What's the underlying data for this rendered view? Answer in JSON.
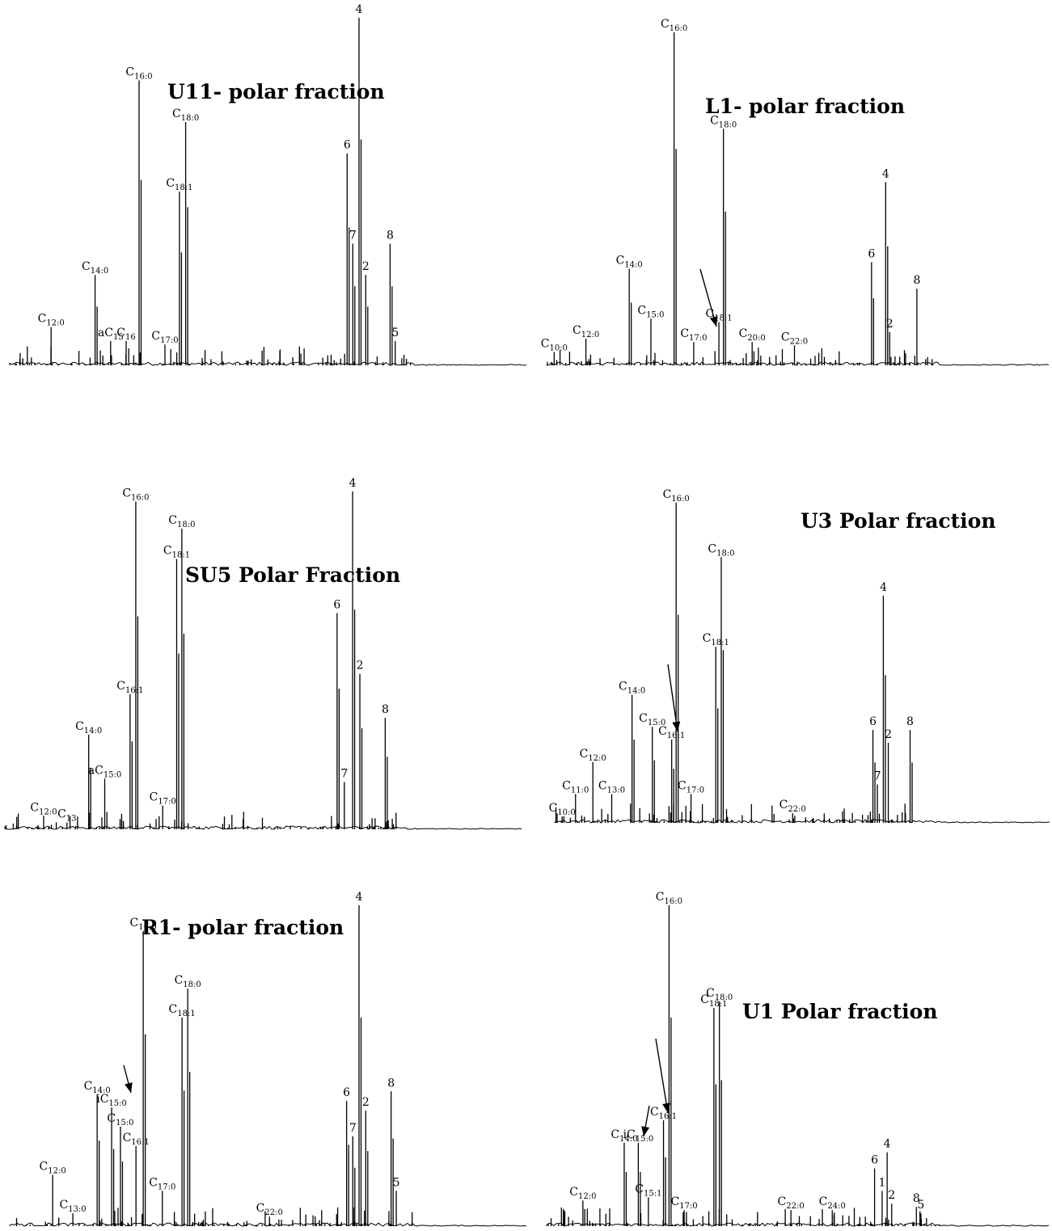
{
  "chart_data": [
    {
      "type": "line",
      "title": "U11- polar fraction",
      "x_range": [
        0,
        100
      ],
      "y_range": [
        0,
        100
      ],
      "peaks": [
        {
          "label": "C12:0",
          "x": 8,
          "y": 11
        },
        {
          "label": "C14:0",
          "x": 16.5,
          "y": 26
        },
        {
          "label": "aC15",
          "x": 19.5,
          "y": 7
        },
        {
          "label": "C16",
          "x": 22.5,
          "y": 7
        },
        {
          "label": "C16:0",
          "x": 25,
          "y": 82
        },
        {
          "label": "C17:0",
          "x": 30,
          "y": 6
        },
        {
          "label": "C18:1",
          "x": 32.8,
          "y": 50
        },
        {
          "label": "C18:0",
          "x": 34,
          "y": 70
        },
        {
          "label": "6",
          "x": 65.2,
          "y": 61
        },
        {
          "label": "7",
          "x": 66.3,
          "y": 35
        },
        {
          "label": "4",
          "x": 67.5,
          "y": 100
        },
        {
          "label": "2",
          "x": 68.8,
          "y": 26
        },
        {
          "label": "8",
          "x": 73.5,
          "y": 35
        },
        {
          "label": "5",
          "x": 74.5,
          "y": 7
        }
      ]
    },
    {
      "type": "line",
      "title": "L1- polar fraction",
      "x_range": [
        0,
        100
      ],
      "y_range": [
        0,
        100
      ],
      "peaks": [
        {
          "label": "C10:0",
          "x": 1.5,
          "y": 4
        },
        {
          "label": "C12:0",
          "x": 7.8,
          "y": 8
        },
        {
          "label": "C14:0",
          "x": 16.4,
          "y": 29
        },
        {
          "label": "C15:0",
          "x": 20.7,
          "y": 14
        },
        {
          "label": "C16:0",
          "x": 25.3,
          "y": 100
        },
        {
          "label": "C17:0",
          "x": 29.2,
          "y": 7
        },
        {
          "label": "C18:1",
          "x": 34.2,
          "y": 13
        },
        {
          "label": "C18:0",
          "x": 35.1,
          "y": 71
        },
        {
          "label": "C20:0",
          "x": 40.8,
          "y": 7
        },
        {
          "label": "C22:0",
          "x": 49.2,
          "y": 6
        },
        {
          "label": "6",
          "x": 64.5,
          "y": 31
        },
        {
          "label": "4",
          "x": 67.3,
          "y": 55
        },
        {
          "label": "2",
          "x": 68.1,
          "y": 10
        },
        {
          "label": "8",
          "x": 73.5,
          "y": 23
        }
      ]
    },
    {
      "type": "line",
      "title": "SU5 Polar Fraction",
      "x_range": [
        0,
        100
      ],
      "y_range": [
        0,
        100
      ],
      "peaks": [
        {
          "label": "C12:0",
          "x": 7.5,
          "y": 4
        },
        {
          "label": "C13",
          "x": 12,
          "y": 2
        },
        {
          "label": "C14:0",
          "x": 16.2,
          "y": 28
        },
        {
          "label": "aC15:0",
          "x": 19.3,
          "y": 15
        },
        {
          "label": "C16:1",
          "x": 24.2,
          "y": 40
        },
        {
          "label": "C16:0",
          "x": 25.3,
          "y": 97
        },
        {
          "label": "C17:0",
          "x": 30.5,
          "y": 7
        },
        {
          "label": "C18:1",
          "x": 33.2,
          "y": 80
        },
        {
          "label": "C18:0",
          "x": 34.2,
          "y": 89
        },
        {
          "label": "6",
          "x": 64.2,
          "y": 64
        },
        {
          "label": "7",
          "x": 65.6,
          "y": 14
        },
        {
          "label": "4",
          "x": 67.2,
          "y": 100
        },
        {
          "label": "2",
          "x": 68.6,
          "y": 46
        },
        {
          "label": "8",
          "x": 73.5,
          "y": 33
        }
      ]
    },
    {
      "type": "line",
      "title": "U3 Polar fraction",
      "x_range": [
        0,
        100
      ],
      "y_range": [
        0,
        100
      ],
      "peaks": [
        {
          "label": "C10:0",
          "x": 1.5,
          "y": 2
        },
        {
          "label": "C11:0",
          "x": 4.2,
          "y": 9
        },
        {
          "label": "C12:0",
          "x": 7.7,
          "y": 19
        },
        {
          "label": "C13:0",
          "x": 11.5,
          "y": 9
        },
        {
          "label": "C14:0",
          "x": 15.6,
          "y": 40
        },
        {
          "label": "C15:0",
          "x": 19.7,
          "y": 30
        },
        {
          "label": "C16:1",
          "x": 23.6,
          "y": 26
        },
        {
          "label": "C16:0",
          "x": 24.5,
          "y": 100
        },
        {
          "label": "C17:0",
          "x": 27.5,
          "y": 9
        },
        {
          "label": "C18:1",
          "x": 32.5,
          "y": 55
        },
        {
          "label": "C18:0",
          "x": 33.6,
          "y": 83
        },
        {
          "label": "C22:0",
          "x": 48,
          "y": 3
        },
        {
          "label": "6",
          "x": 64.2,
          "y": 29
        },
        {
          "label": "7",
          "x": 65.1,
          "y": 12
        },
        {
          "label": "4",
          "x": 66.3,
          "y": 71
        },
        {
          "label": "2",
          "x": 67.3,
          "y": 25
        },
        {
          "label": "8",
          "x": 71.7,
          "y": 29
        }
      ]
    },
    {
      "type": "line",
      "title": "R1- polar fraction",
      "x_range": [
        0,
        100
      ],
      "y_range": [
        0,
        100
      ],
      "peaks": [
        {
          "label": "C12:0",
          "x": 8.3,
          "y": 16
        },
        {
          "label": "C13:0",
          "x": 12.2,
          "y": 4
        },
        {
          "label": "C14:0",
          "x": 16.9,
          "y": 41
        },
        {
          "label": "iC15:0",
          "x": 19.7,
          "y": 37
        },
        {
          "label": "C15:0",
          "x": 21.4,
          "y": 31
        },
        {
          "label": "C16:1",
          "x": 24.4,
          "y": 25
        },
        {
          "label": "C16:0",
          "x": 25.8,
          "y": 92
        },
        {
          "label": "C17:0",
          "x": 29.5,
          "y": 11
        },
        {
          "label": "C18:1",
          "x": 33.3,
          "y": 65
        },
        {
          "label": "C18:0",
          "x": 34.4,
          "y": 74
        },
        {
          "label": "C22:0",
          "x": 50.2,
          "y": 3
        },
        {
          "label": "6",
          "x": 65.1,
          "y": 39
        },
        {
          "label": "7",
          "x": 66.3,
          "y": 28
        },
        {
          "label": "4",
          "x": 67.5,
          "y": 100
        },
        {
          "label": "2",
          "x": 68.8,
          "y": 36
        },
        {
          "label": "8",
          "x": 73.7,
          "y": 42
        },
        {
          "label": "5",
          "x": 74.7,
          "y": 11
        }
      ]
    },
    {
      "type": "line",
      "title": "U1 Polar fraction",
      "x_range": [
        0,
        100
      ],
      "y_range": [
        0,
        100
      ],
      "peaks": [
        {
          "label": "C12:0",
          "x": 7.2,
          "y": 8
        },
        {
          "label": "C14:0",
          "x": 15.4,
          "y": 26
        },
        {
          "label": "iC15:0",
          "x": 18.2,
          "y": 26
        },
        {
          "label": "C15:1",
          "x": 20.2,
          "y": 9
        },
        {
          "label": "C16:1",
          "x": 23.2,
          "y": 33
        },
        {
          "label": "C16:0",
          "x": 24.3,
          "y": 100
        },
        {
          "label": "C17:0",
          "x": 27.3,
          "y": 5
        },
        {
          "label": "C18:1",
          "x": 33.2,
          "y": 68
        },
        {
          "label": "C18:0",
          "x": 34.3,
          "y": 70
        },
        {
          "label": "C22:0",
          "x": 48.5,
          "y": 5
        },
        {
          "label": "C24:0",
          "x": 56.7,
          "y": 5
        },
        {
          "label": "6",
          "x": 65.1,
          "y": 18
        },
        {
          "label": "1",
          "x": 66.6,
          "y": 11
        },
        {
          "label": "4",
          "x": 67.6,
          "y": 23
        },
        {
          "label": "2",
          "x": 68.5,
          "y": 7
        },
        {
          "label": "8",
          "x": 73.4,
          "y": 6
        },
        {
          "label": "5",
          "x": 74.3,
          "y": 4
        }
      ]
    }
  ]
}
